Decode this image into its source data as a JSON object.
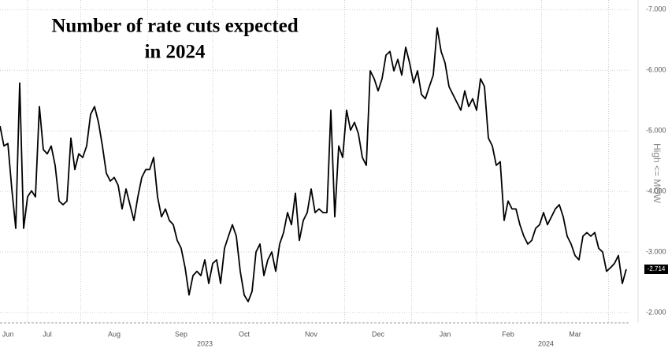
{
  "chart_data": {
    "type": "line",
    "title_lines": [
      "Number of rate cuts expected",
      "in 2024"
    ],
    "y_axis_label": "High <= MOW",
    "year_labels": [
      "2023",
      "2024"
    ],
    "categories": [
      null,
      null,
      "Jun",
      null,
      null,
      null,
      null,
      null,
      null,
      null,
      null,
      null,
      "Jul",
      null,
      null,
      null,
      null,
      null,
      null,
      null,
      null,
      null,
      null,
      null,
      null,
      null,
      null,
      null,
      null,
      "Aug",
      null,
      null,
      null,
      null,
      null,
      null,
      null,
      null,
      null,
      null,
      null,
      null,
      null,
      null,
      null,
      null,
      "Sep",
      null,
      null,
      null,
      null,
      null,
      null,
      null,
      null,
      null,
      null,
      null,
      null,
      null,
      null,
      null,
      "Oct",
      null,
      null,
      null,
      null,
      null,
      null,
      null,
      null,
      null,
      null,
      null,
      null,
      null,
      null,
      null,
      null,
      "Nov",
      null,
      null,
      null,
      null,
      null,
      null,
      null,
      null,
      null,
      null,
      null,
      null,
      null,
      null,
      null,
      null,
      "Dec",
      null,
      null,
      null,
      null,
      null,
      null,
      null,
      null,
      null,
      null,
      null,
      null,
      null,
      null,
      null,
      null,
      "Jan",
      null,
      null,
      null,
      null,
      null,
      null,
      null,
      null,
      null,
      null,
      null,
      null,
      null,
      null,
      null,
      "Feb",
      null,
      null,
      null,
      null,
      null,
      null,
      null,
      null,
      null,
      null,
      null,
      null,
      null,
      null,
      null,
      null,
      "Mar",
      null,
      null,
      null,
      null,
      null,
      null,
      null,
      null,
      null,
      null,
      null,
      null,
      null
    ],
    "series": [
      {
        "name": "Rate cuts",
        "color": "#000000",
        "values": [
          -5.08,
          -4.75,
          -4.79,
          -4.04,
          -3.39,
          -5.79,
          -3.39,
          -3.91,
          -4.01,
          -3.91,
          -5.4,
          -4.69,
          -4.62,
          -4.75,
          -4.43,
          -3.84,
          -3.78,
          -3.84,
          -4.88,
          -4.36,
          -4.62,
          -4.56,
          -4.75,
          -5.27,
          -5.4,
          -5.14,
          -4.75,
          -4.3,
          -4.17,
          -4.23,
          -4.1,
          -3.71,
          -4.04,
          -3.78,
          -3.52,
          -3.91,
          -4.23,
          -4.36,
          -4.36,
          -4.56,
          -3.91,
          -3.58,
          -3.71,
          -3.52,
          -3.45,
          -3.19,
          -3.06,
          -2.74,
          -2.29,
          -2.61,
          -2.68,
          -2.61,
          -2.87,
          -2.48,
          -2.81,
          -2.87,
          -2.48,
          -3.06,
          -3.26,
          -3.45,
          -3.26,
          -2.68,
          -2.29,
          -2.18,
          -2.35,
          -3.0,
          -3.13,
          -2.61,
          -2.87,
          -3.0,
          -2.68,
          -3.13,
          -3.32,
          -3.65,
          -3.45,
          -3.97,
          -3.19,
          -3.52,
          -3.65,
          -4.04,
          -3.65,
          -3.71,
          -3.65,
          -3.65,
          -5.34,
          -3.58,
          -4.75,
          -4.56,
          -5.34,
          -5.01,
          -5.14,
          -4.95,
          -4.56,
          -4.43,
          -5.99,
          -5.86,
          -5.66,
          -5.86,
          -6.25,
          -6.31,
          -5.99,
          -6.18,
          -5.92,
          -6.38,
          -6.12,
          -5.79,
          -5.99,
          -5.6,
          -5.53,
          -5.73,
          -5.92,
          -6.7,
          -6.31,
          -6.12,
          -5.73,
          -5.6,
          -5.47,
          -5.34,
          -5.66,
          -5.4,
          -5.53,
          -5.34,
          -5.86,
          -5.73,
          -4.88,
          -4.75,
          -4.43,
          -4.49,
          -3.52,
          -3.84,
          -3.71,
          -3.71,
          -3.45,
          -3.26,
          -3.13,
          -3.19,
          -3.39,
          -3.45,
          -3.65,
          -3.45,
          -3.58,
          -3.71,
          -3.78,
          -3.58,
          -3.26,
          -3.13,
          -2.94,
          -2.87,
          -3.26,
          -3.32,
          -3.26,
          -3.32,
          -3.06,
          -3.0,
          -2.68,
          -2.74,
          -2.81,
          -2.94,
          -2.48,
          -2.714
        ],
        "value_labels": [
          null,
          null,
          null,
          null,
          null,
          null,
          null,
          null,
          null,
          null,
          null,
          null,
          null,
          null,
          null,
          null,
          null,
          null,
          null,
          null,
          null,
          null,
          null,
          null,
          null,
          null,
          null,
          null,
          null,
          null,
          null,
          null,
          null,
          null,
          null,
          null,
          null,
          null,
          null,
          null,
          null,
          null,
          null,
          null,
          null,
          null,
          null,
          null,
          null,
          null,
          null,
          null,
          null,
          null,
          null,
          null,
          null,
          null,
          null,
          null,
          null,
          null,
          null,
          null,
          null,
          null,
          null,
          null,
          null,
          null,
          null,
          null,
          null,
          null,
          null,
          null,
          null,
          null,
          null,
          null,
          null,
          null,
          null,
          null,
          null,
          null,
          null,
          null,
          null,
          null,
          null,
          null,
          null,
          null,
          null,
          null,
          null,
          null,
          null,
          null,
          null,
          null,
          null,
          null,
          null,
          null,
          null,
          null,
          null,
          null,
          null,
          null,
          null,
          null,
          null,
          null,
          null,
          null,
          null,
          null,
          null,
          null,
          null,
          null,
          null,
          null,
          null,
          null,
          null,
          null,
          null,
          null,
          null,
          null,
          null,
          null,
          null,
          null,
          null,
          null,
          null,
          null,
          null,
          null,
          null,
          null,
          null,
          null,
          null,
          null,
          null,
          null,
          null,
          null,
          null,
          null,
          null,
          null,
          null,
          "-2.714"
        ]
      }
    ],
    "ylim": [
      -1.83,
      -7.16
    ],
    "yticks": [
      {
        "value": -7,
        "label": "-7.000"
      },
      {
        "value": -6,
        "label": "-6.000"
      },
      {
        "value": -5,
        "label": "-5.000"
      },
      {
        "value": -4,
        "label": "-4.000"
      },
      {
        "value": -3,
        "label": "-3.000"
      },
      {
        "value": -2,
        "label": "-2.000"
      }
    ],
    "grid": true
  }
}
